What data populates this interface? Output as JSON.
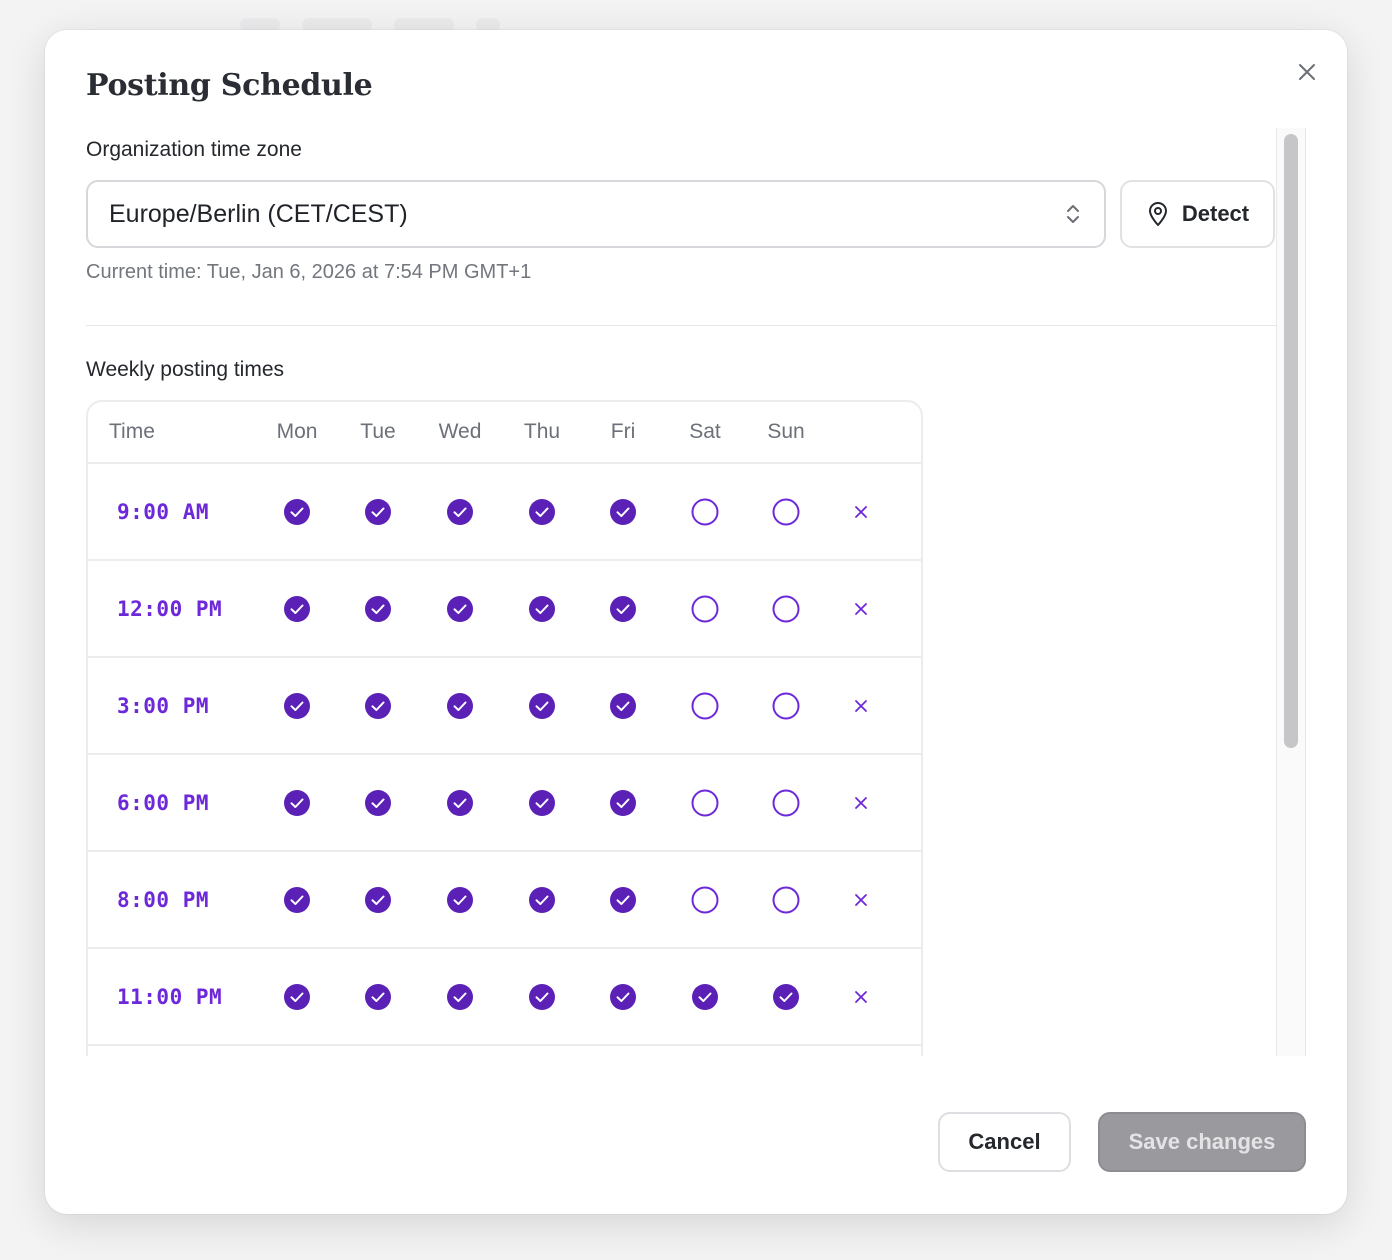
{
  "dialog": {
    "title": "Posting Schedule"
  },
  "timezone": {
    "label": "Organization time zone",
    "selected": "Europe/Berlin (CET/CEST)",
    "detect_label": "Detect",
    "current_time": "Current time: Tue, Jan 6, 2026 at 7:54 PM GMT+1"
  },
  "weekly": {
    "label": "Weekly posting times",
    "headers": [
      "Time",
      "Mon",
      "Tue",
      "Wed",
      "Thu",
      "Fri",
      "Sat",
      "Sun"
    ],
    "rows": [
      {
        "time": "9:00 AM",
        "days": [
          true,
          true,
          true,
          true,
          true,
          false,
          false
        ]
      },
      {
        "time": "12:00 PM",
        "days": [
          true,
          true,
          true,
          true,
          true,
          false,
          false
        ]
      },
      {
        "time": "3:00 PM",
        "days": [
          true,
          true,
          true,
          true,
          true,
          false,
          false
        ]
      },
      {
        "time": "6:00 PM",
        "days": [
          true,
          true,
          true,
          true,
          true,
          false,
          false
        ]
      },
      {
        "time": "8:00 PM",
        "days": [
          true,
          true,
          true,
          true,
          true,
          false,
          false
        ]
      },
      {
        "time": "11:00 PM",
        "days": [
          true,
          true,
          true,
          true,
          true,
          true,
          true
        ]
      }
    ]
  },
  "footer": {
    "cancel_label": "Cancel",
    "save_label": "Save changes"
  },
  "colors": {
    "accent": "#6d28d9",
    "checked_fill": "#5b21b6",
    "disabled_button": "#9a9a9e"
  },
  "icons": {
    "close": "close-icon",
    "select": "chevron-up-down-icon",
    "detect": "map-pin-icon",
    "checked": "check-circle-icon",
    "unchecked": "empty-circle-icon",
    "remove": "x-icon"
  }
}
